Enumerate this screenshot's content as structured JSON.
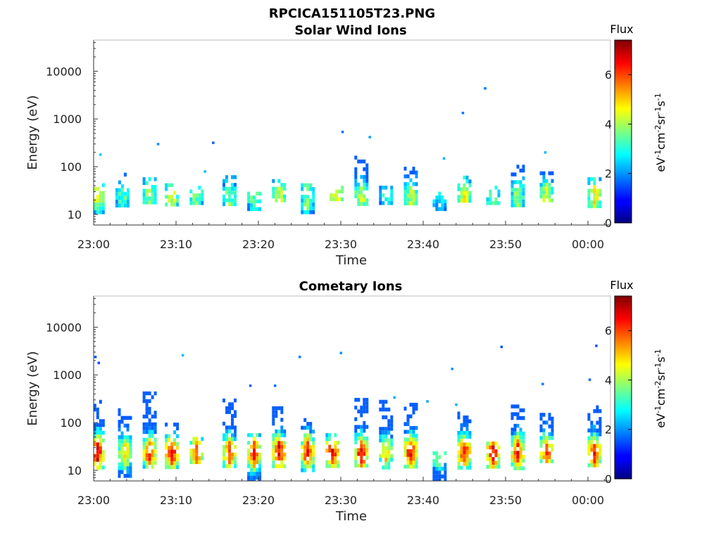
{
  "figure_title": "RPCICA151105T23.PNG",
  "chart_data": [
    {
      "type": "heatmap",
      "title": "Solar Wind Ions",
      "xlabel": "Time",
      "ylabel": "Energy (eV)",
      "y_scale": "log",
      "ylim": [
        6,
        45000
      ],
      "xlim": [
        "23:00",
        "00:03"
      ],
      "x_ticks": [
        "23:00",
        "23:10",
        "23:20",
        "23:30",
        "23:40",
        "23:50",
        "00:00"
      ],
      "y_ticks": [
        10,
        100,
        1000,
        10000
      ],
      "y_tick_labels": [
        "10",
        "100",
        "1000",
        "10000"
      ],
      "colorbar": {
        "title": "Flux",
        "unit_label": "eV-1cm-2sr-1s-1",
        "range": [
          0,
          7.4
        ],
        "ticks": [
          0,
          2,
          4,
          6
        ],
        "tick_labels": [
          "0",
          "2",
          "4",
          "6"
        ],
        "colormap": "jet"
      },
      "bursts": [
        {
          "t": 0.5,
          "e1": 12,
          "e2": 45,
          "peak": 4.5
        },
        {
          "t": 3.5,
          "e1": 15,
          "e2": 75,
          "peak": 3.5
        },
        {
          "t": 6.8,
          "e1": 18,
          "e2": 60,
          "peak": 4.0
        },
        {
          "t": 9.5,
          "e1": 17,
          "e2": 45,
          "peak": 4.5
        },
        {
          "t": 12.5,
          "e1": 17,
          "e2": 40,
          "peak": 3.8
        },
        {
          "t": 16.5,
          "e1": 17,
          "e2": 80,
          "peak": 3.8
        },
        {
          "t": 19.5,
          "e1": 12,
          "e2": 30,
          "peak": 3.5
        },
        {
          "t": 22.5,
          "e1": 20,
          "e2": 55,
          "peak": 4.5
        },
        {
          "t": 26.0,
          "e1": 12,
          "e2": 45,
          "peak": 3.8
        },
        {
          "t": 29.5,
          "e1": 20,
          "e2": 40,
          "peak": 5.0
        },
        {
          "t": 32.5,
          "e1": 17,
          "e2": 170,
          "peak": 4.5
        },
        {
          "t": 35.5,
          "e1": 17,
          "e2": 40,
          "peak": 3.0
        },
        {
          "t": 38.5,
          "e1": 17,
          "e2": 100,
          "peak": 4.2
        },
        {
          "t": 42.0,
          "e1": 12,
          "e2": 30,
          "peak": 2.8
        },
        {
          "t": 45.0,
          "e1": 20,
          "e2": 65,
          "peak": 4.8
        },
        {
          "t": 48.5,
          "e1": 17,
          "e2": 40,
          "peak": 3.8
        },
        {
          "t": 51.5,
          "e1": 17,
          "e2": 110,
          "peak": 4.0
        },
        {
          "t": 55.0,
          "e1": 20,
          "e2": 80,
          "peak": 4.5
        },
        {
          "t": 60.8,
          "e1": 15,
          "e2": 60,
          "peak": 4.8
        }
      ],
      "points": [
        {
          "t": 0.8,
          "e": 180,
          "v": 2.4
        },
        {
          "t": 7.8,
          "e": 300,
          "v": 2.0
        },
        {
          "t": 14.5,
          "e": 320,
          "v": 1.6
        },
        {
          "t": 13.5,
          "e": 80,
          "v": 2.3
        },
        {
          "t": 30.2,
          "e": 540,
          "v": 1.7
        },
        {
          "t": 33.5,
          "e": 420,
          "v": 2.1
        },
        {
          "t": 42.5,
          "e": 150,
          "v": 2.2
        },
        {
          "t": 44.8,
          "e": 1350,
          "v": 1.8
        },
        {
          "t": 47.5,
          "e": 4400,
          "v": 1.8
        },
        {
          "t": 54.8,
          "e": 200,
          "v": 2.3
        }
      ]
    },
    {
      "type": "heatmap",
      "title": "Cometary Ions",
      "xlabel": "Time",
      "ylabel": "Energy (eV)",
      "y_scale": "log",
      "ylim": [
        6,
        45000
      ],
      "xlim": [
        "23:00",
        "00:03"
      ],
      "x_ticks": [
        "23:00",
        "23:10",
        "23:20",
        "23:30",
        "23:40",
        "23:50",
        "00:00"
      ],
      "y_ticks": [
        10,
        100,
        1000,
        10000
      ],
      "y_tick_labels": [
        "10",
        "100",
        "1000",
        "10000"
      ],
      "colorbar": {
        "title": "Flux",
        "unit_label": "eV-1cm-2sr-1s-1",
        "range": [
          0,
          7.4
        ],
        "ticks": [
          0,
          2,
          4,
          6
        ],
        "tick_labels": [
          "0",
          "2",
          "4",
          "6"
        ],
        "colormap": "jet"
      },
      "bursts": [
        {
          "t": 0.5,
          "e1": 12,
          "e2": 300,
          "peak": 6.8
        },
        {
          "t": 3.8,
          "e1": 7,
          "e2": 200,
          "peak": 5.0
        },
        {
          "t": 6.8,
          "e1": 12,
          "e2": 450,
          "peak": 6.2
        },
        {
          "t": 9.5,
          "e1": 12,
          "e2": 100,
          "peak": 6.6
        },
        {
          "t": 12.5,
          "e1": 15,
          "e2": 50,
          "peak": 6.0
        },
        {
          "t": 16.5,
          "e1": 12,
          "e2": 320,
          "peak": 6.0
        },
        {
          "t": 19.5,
          "e1": 6,
          "e2": 60,
          "peak": 6.5
        },
        {
          "t": 22.5,
          "e1": 12,
          "e2": 220,
          "peak": 6.9
        },
        {
          "t": 26.0,
          "e1": 10,
          "e2": 150,
          "peak": 6.5
        },
        {
          "t": 29.0,
          "e1": 12,
          "e2": 60,
          "peak": 6.8
        },
        {
          "t": 32.5,
          "e1": 12,
          "e2": 330,
          "peak": 6.8
        },
        {
          "t": 35.5,
          "e1": 12,
          "e2": 300,
          "peak": 5.0
        },
        {
          "t": 38.5,
          "e1": 12,
          "e2": 260,
          "peak": 6.8
        },
        {
          "t": 42.0,
          "e1": 6,
          "e2": 25,
          "peak": 4.0
        },
        {
          "t": 45.0,
          "e1": 12,
          "e2": 170,
          "peak": 6.5
        },
        {
          "t": 48.5,
          "e1": 12,
          "e2": 40,
          "peak": 6.6
        },
        {
          "t": 51.5,
          "e1": 12,
          "e2": 240,
          "peak": 6.5
        },
        {
          "t": 55.0,
          "e1": 15,
          "e2": 160,
          "peak": 6.2
        },
        {
          "t": 60.8,
          "e1": 12,
          "e2": 230,
          "peak": 6.6
        }
      ],
      "points": [
        {
          "t": 0.2,
          "e": 2400,
          "v": 1.5
        },
        {
          "t": 0.6,
          "e": 1800,
          "v": 1.5
        },
        {
          "t": 10.8,
          "e": 2600,
          "v": 2.3
        },
        {
          "t": 19.0,
          "e": 600,
          "v": 1.6
        },
        {
          "t": 22.0,
          "e": 600,
          "v": 1.7
        },
        {
          "t": 25.0,
          "e": 2400,
          "v": 1.8
        },
        {
          "t": 30.0,
          "e": 2900,
          "v": 2.0
        },
        {
          "t": 43.5,
          "e": 1350,
          "v": 2.0
        },
        {
          "t": 49.5,
          "e": 3900,
          "v": 1.5
        },
        {
          "t": 54.5,
          "e": 650,
          "v": 1.8
        },
        {
          "t": 60.2,
          "e": 800,
          "v": 1.7
        },
        {
          "t": 61.0,
          "e": 4100,
          "v": 1.5
        },
        {
          "t": 36.5,
          "e": 340,
          "v": 2.2
        },
        {
          "t": 40.5,
          "e": 280,
          "v": 2.1
        },
        {
          "t": 44.0,
          "e": 240,
          "v": 2.2
        }
      ]
    }
  ]
}
